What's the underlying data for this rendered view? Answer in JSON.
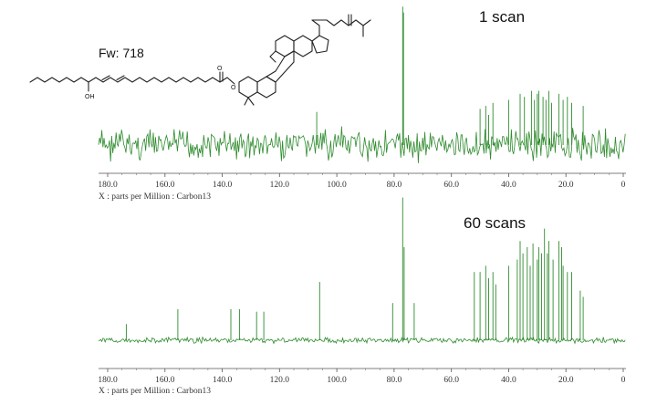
{
  "chart_data": [
    {
      "type": "nmr-spectrum",
      "title": "1 scan",
      "xlabel": "X : parts per Million : Carbon13",
      "xlim": [
        180,
        0
      ],
      "reversed_axis": true,
      "tick_labels": [
        "180.0",
        "160.0",
        "140.0",
        "120.0",
        "100.0",
        "80.0",
        "60.0",
        "40.0",
        "20.0",
        "0"
      ],
      "line_color": "#2e8b2e",
      "noise_level": 0.35,
      "peaks": [
        {
          "ppm": 77.0,
          "intensity": 4.6
        },
        {
          "ppm": 76.7,
          "intensity": 4.4
        },
        {
          "ppm": 107.0,
          "intensity": 1.1
        },
        {
          "ppm": 50.0,
          "intensity": 1.2
        },
        {
          "ppm": 48.0,
          "intensity": 1.3
        },
        {
          "ppm": 47.0,
          "intensity": 1.0
        },
        {
          "ppm": 45.5,
          "intensity": 1.4
        },
        {
          "ppm": 40.0,
          "intensity": 1.5
        },
        {
          "ppm": 36.0,
          "intensity": 1.7
        },
        {
          "ppm": 34.5,
          "intensity": 1.6
        },
        {
          "ppm": 32.0,
          "intensity": 1.8
        },
        {
          "ppm": 31.0,
          "intensity": 1.5
        },
        {
          "ppm": 30.0,
          "intensity": 1.7
        },
        {
          "ppm": 29.5,
          "intensity": 1.8
        },
        {
          "ppm": 28.0,
          "intensity": 1.6
        },
        {
          "ppm": 27.0,
          "intensity": 1.5
        },
        {
          "ppm": 26.0,
          "intensity": 1.8
        },
        {
          "ppm": 25.0,
          "intensity": 1.4
        },
        {
          "ppm": 22.5,
          "intensity": 1.7
        },
        {
          "ppm": 21.0,
          "intensity": 1.5
        },
        {
          "ppm": 19.5,
          "intensity": 1.6
        },
        {
          "ppm": 18.0,
          "intensity": 1.4
        },
        {
          "ppm": 14.0,
          "intensity": 1.3
        }
      ]
    },
    {
      "type": "nmr-spectrum",
      "title": "60 scans",
      "xlabel": "X : parts per Million : Carbon13",
      "xlim": [
        180,
        0
      ],
      "reversed_axis": true,
      "tick_labels": [
        "180.0",
        "160.0",
        "140.0",
        "120.0",
        "100.0",
        "80.0",
        "60.0",
        "40.0",
        "20.0",
        "0"
      ],
      "line_color": "#2e8b2e",
      "noise_level": 0.02,
      "peaks": [
        {
          "ppm": 173.5,
          "intensity": 0.13
        },
        {
          "ppm": 155.5,
          "intensity": 0.25
        },
        {
          "ppm": 137.0,
          "intensity": 0.25
        },
        {
          "ppm": 134.0,
          "intensity": 0.25
        },
        {
          "ppm": 128.0,
          "intensity": 0.23
        },
        {
          "ppm": 125.5,
          "intensity": 0.23
        },
        {
          "ppm": 106.0,
          "intensity": 0.47
        },
        {
          "ppm": 80.5,
          "intensity": 0.3
        },
        {
          "ppm": 77.0,
          "intensity": 1.15
        },
        {
          "ppm": 76.5,
          "intensity": 0.75
        },
        {
          "ppm": 73.0,
          "intensity": 0.3
        },
        {
          "ppm": 52.0,
          "intensity": 0.55
        },
        {
          "ppm": 50.0,
          "intensity": 0.55
        },
        {
          "ppm": 48.0,
          "intensity": 0.6
        },
        {
          "ppm": 47.0,
          "intensity": 0.5
        },
        {
          "ppm": 45.5,
          "intensity": 0.55
        },
        {
          "ppm": 44.5,
          "intensity": 0.45
        },
        {
          "ppm": 40.0,
          "intensity": 0.6
        },
        {
          "ppm": 37.0,
          "intensity": 0.65
        },
        {
          "ppm": 36.0,
          "intensity": 0.8
        },
        {
          "ppm": 35.0,
          "intensity": 0.7
        },
        {
          "ppm": 33.5,
          "intensity": 0.75
        },
        {
          "ppm": 32.5,
          "intensity": 0.6
        },
        {
          "ppm": 31.5,
          "intensity": 0.78
        },
        {
          "ppm": 30.0,
          "intensity": 0.65
        },
        {
          "ppm": 29.5,
          "intensity": 0.75
        },
        {
          "ppm": 28.5,
          "intensity": 0.7
        },
        {
          "ppm": 27.5,
          "intensity": 0.9
        },
        {
          "ppm": 26.5,
          "intensity": 0.7
        },
        {
          "ppm": 26.0,
          "intensity": 0.8
        },
        {
          "ppm": 24.5,
          "intensity": 0.65
        },
        {
          "ppm": 22.5,
          "intensity": 0.8
        },
        {
          "ppm": 21.5,
          "intensity": 0.75
        },
        {
          "ppm": 21.0,
          "intensity": 0.6
        },
        {
          "ppm": 19.5,
          "intensity": 0.55
        },
        {
          "ppm": 18.0,
          "intensity": 0.55
        },
        {
          "ppm": 15.0,
          "intensity": 0.4
        },
        {
          "ppm": 14.0,
          "intensity": 0.35
        }
      ]
    }
  ],
  "structure": {
    "formula_weight_label": "Fw: 718",
    "hydroxyl_label": "OH",
    "oxygen_label": "O"
  }
}
